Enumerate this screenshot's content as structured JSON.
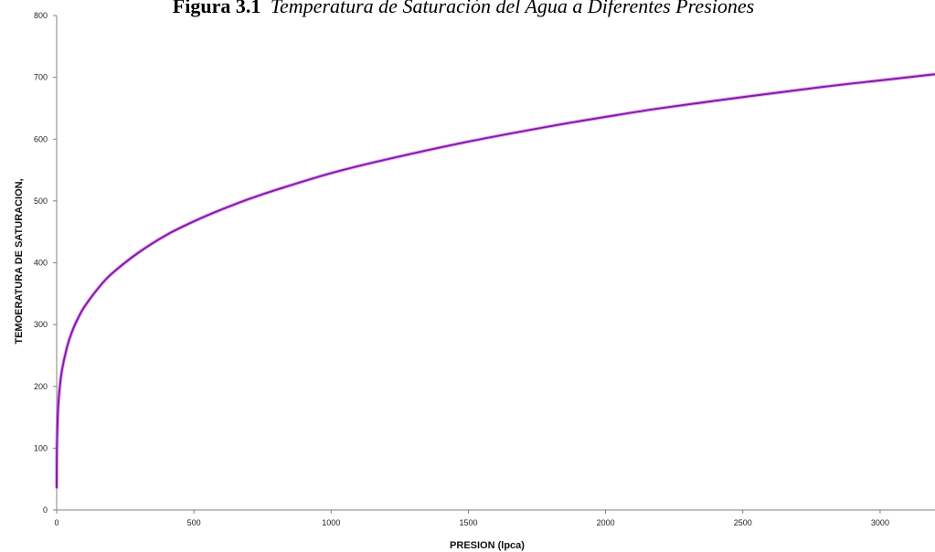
{
  "chart_data": {
    "type": "line",
    "title_bold": "Figura 3.1",
    "title_italic": "Temperatura de Saturación del Agua a Diferentes Presiones",
    "xlabel": "PRESION (lpca)",
    "ylabel": "TEMOERATURA DE SATURACION,",
    "xlim": [
      0,
      3200
    ],
    "ylim": [
      0,
      800
    ],
    "x_ticks": [
      0,
      500,
      1000,
      1500,
      2000,
      2500,
      3000
    ],
    "y_ticks": [
      0,
      100,
      200,
      300,
      400,
      500,
      600,
      700,
      800
    ],
    "grid": false,
    "legend": "none",
    "series": [
      {
        "color": "#7b1fa2",
        "x": [
          0.1,
          1,
          5,
          10,
          20,
          40,
          60,
          80,
          100,
          150,
          200,
          300,
          400,
          500,
          600,
          700,
          800,
          1000,
          1200,
          1500,
          1800,
          2000,
          2200,
          2500,
          2800,
          3000,
          3200
        ],
        "y": [
          35,
          102,
          162,
          193,
          228,
          267,
          293,
          312,
          328,
          358,
          382,
          417,
          445,
          467,
          486,
          503,
          518,
          545,
          567,
          596,
          621,
          636,
          650,
          668,
          685,
          695,
          705
        ]
      }
    ]
  }
}
